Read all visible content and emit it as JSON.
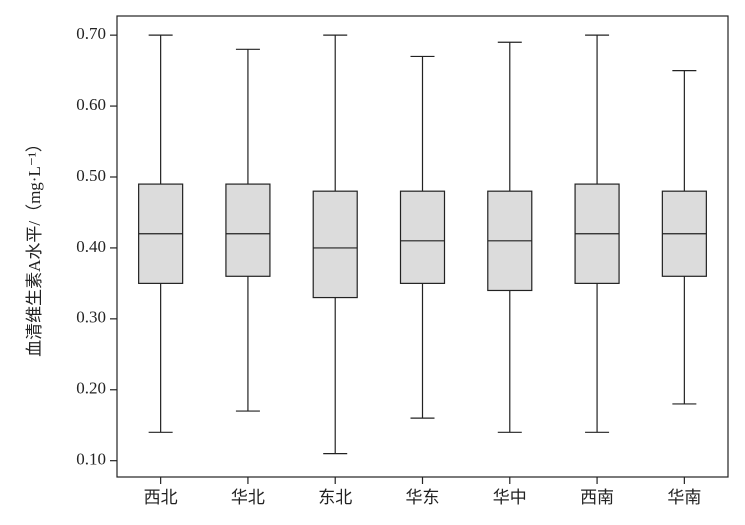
{
  "chart_data": {
    "type": "box",
    "y_label": "血清维生素A水平/（mg·L⁻¹）",
    "categories": [
      "西北",
      "华北",
      "东北",
      "华东",
      "华中",
      "西南",
      "华南"
    ],
    "boxes": [
      {
        "min": 0.14,
        "q1": 0.35,
        "median": 0.42,
        "q3": 0.49,
        "max": 0.7
      },
      {
        "min": 0.17,
        "q1": 0.36,
        "median": 0.42,
        "q3": 0.49,
        "max": 0.68
      },
      {
        "min": 0.11,
        "q1": 0.33,
        "median": 0.4,
        "q3": 0.48,
        "max": 0.7
      },
      {
        "min": 0.16,
        "q1": 0.35,
        "median": 0.41,
        "q3": 0.48,
        "max": 0.67
      },
      {
        "min": 0.14,
        "q1": 0.34,
        "median": 0.41,
        "q3": 0.48,
        "max": 0.69
      },
      {
        "min": 0.14,
        "q1": 0.35,
        "median": 0.42,
        "q3": 0.49,
        "max": 0.7
      },
      {
        "min": 0.18,
        "q1": 0.36,
        "median": 0.42,
        "q3": 0.48,
        "max": 0.65
      }
    ],
    "color": "#dcdcdc",
    "ylim": [
      0.077,
      0.727
    ],
    "yticks": [
      {
        "value": 0.1,
        "label": "0.10"
      },
      {
        "value": 0.2,
        "label": "0.20"
      },
      {
        "value": 0.3,
        "label": "0.30"
      },
      {
        "value": 0.4,
        "label": "0.40"
      },
      {
        "value": 0.5,
        "label": "0.50"
      },
      {
        "value": 0.6,
        "label": "0.60"
      },
      {
        "value": 0.7,
        "label": "0.70"
      }
    ],
    "grid": false
  }
}
